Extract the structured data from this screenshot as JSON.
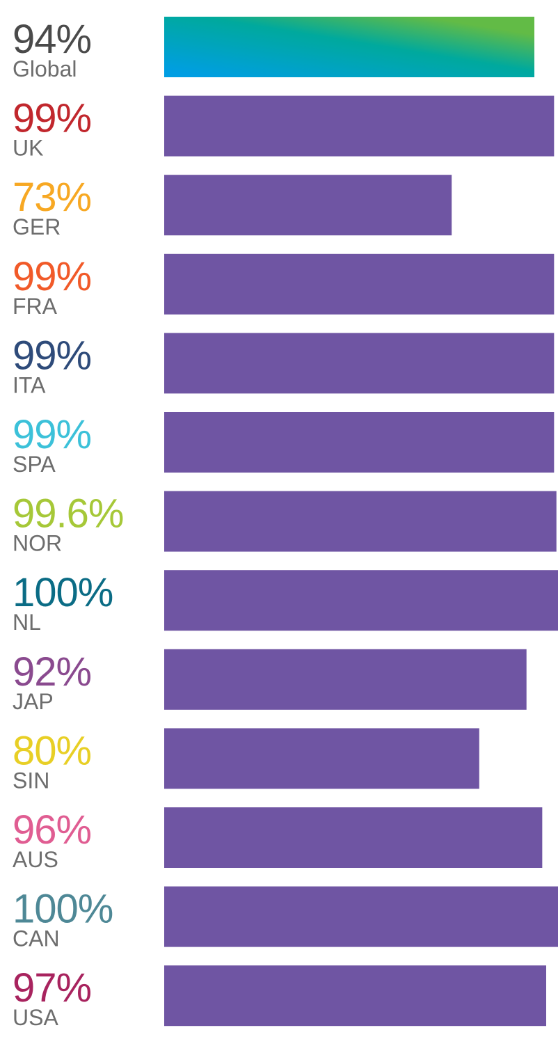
{
  "chart_data": {
    "type": "bar",
    "orientation": "horizontal",
    "title": "",
    "xlabel": "",
    "ylabel": "",
    "xlim": [
      0,
      100
    ],
    "grid": false,
    "legend": "none",
    "bar_color": "#6f55a3",
    "highlight_gradient": [
      "#009ee3",
      "#00a99d",
      "#62bb46"
    ],
    "rows": [
      {
        "category": "Global",
        "value": 94,
        "value_label": "94%",
        "label_color": "#4a4a4a",
        "highlight": true
      },
      {
        "category": "UK",
        "value": 99,
        "value_label": "99%",
        "label_color": "#c1272d"
      },
      {
        "category": "GER",
        "value": 73,
        "value_label": "73%",
        "label_color": "#f7a823"
      },
      {
        "category": "FRA",
        "value": 99,
        "value_label": "99%",
        "label_color": "#f15a29"
      },
      {
        "category": "ITA",
        "value": 99,
        "value_label": "99%",
        "label_color": "#2e4b7a"
      },
      {
        "category": "SPA",
        "value": 99,
        "value_label": "99%",
        "label_color": "#3cc1d9"
      },
      {
        "category": "NOR",
        "value": 99.6,
        "value_label": "99.6%",
        "label_color": "#a6c838"
      },
      {
        "category": "NL",
        "value": 100,
        "value_label": "100%",
        "label_color": "#0b6c85"
      },
      {
        "category": "JAP",
        "value": 92,
        "value_label": "92%",
        "label_color": "#8a4a8f"
      },
      {
        "category": "SIN",
        "value": 80,
        "value_label": "80%",
        "label_color": "#e8cf25"
      },
      {
        "category": "AUS",
        "value": 96,
        "value_label": "96%",
        "label_color": "#e05d92"
      },
      {
        "category": "CAN",
        "value": 100,
        "value_label": "100%",
        "label_color": "#4e8896"
      },
      {
        "category": "USA",
        "value": 97,
        "value_label": "97%",
        "label_color": "#a8235e"
      }
    ]
  }
}
